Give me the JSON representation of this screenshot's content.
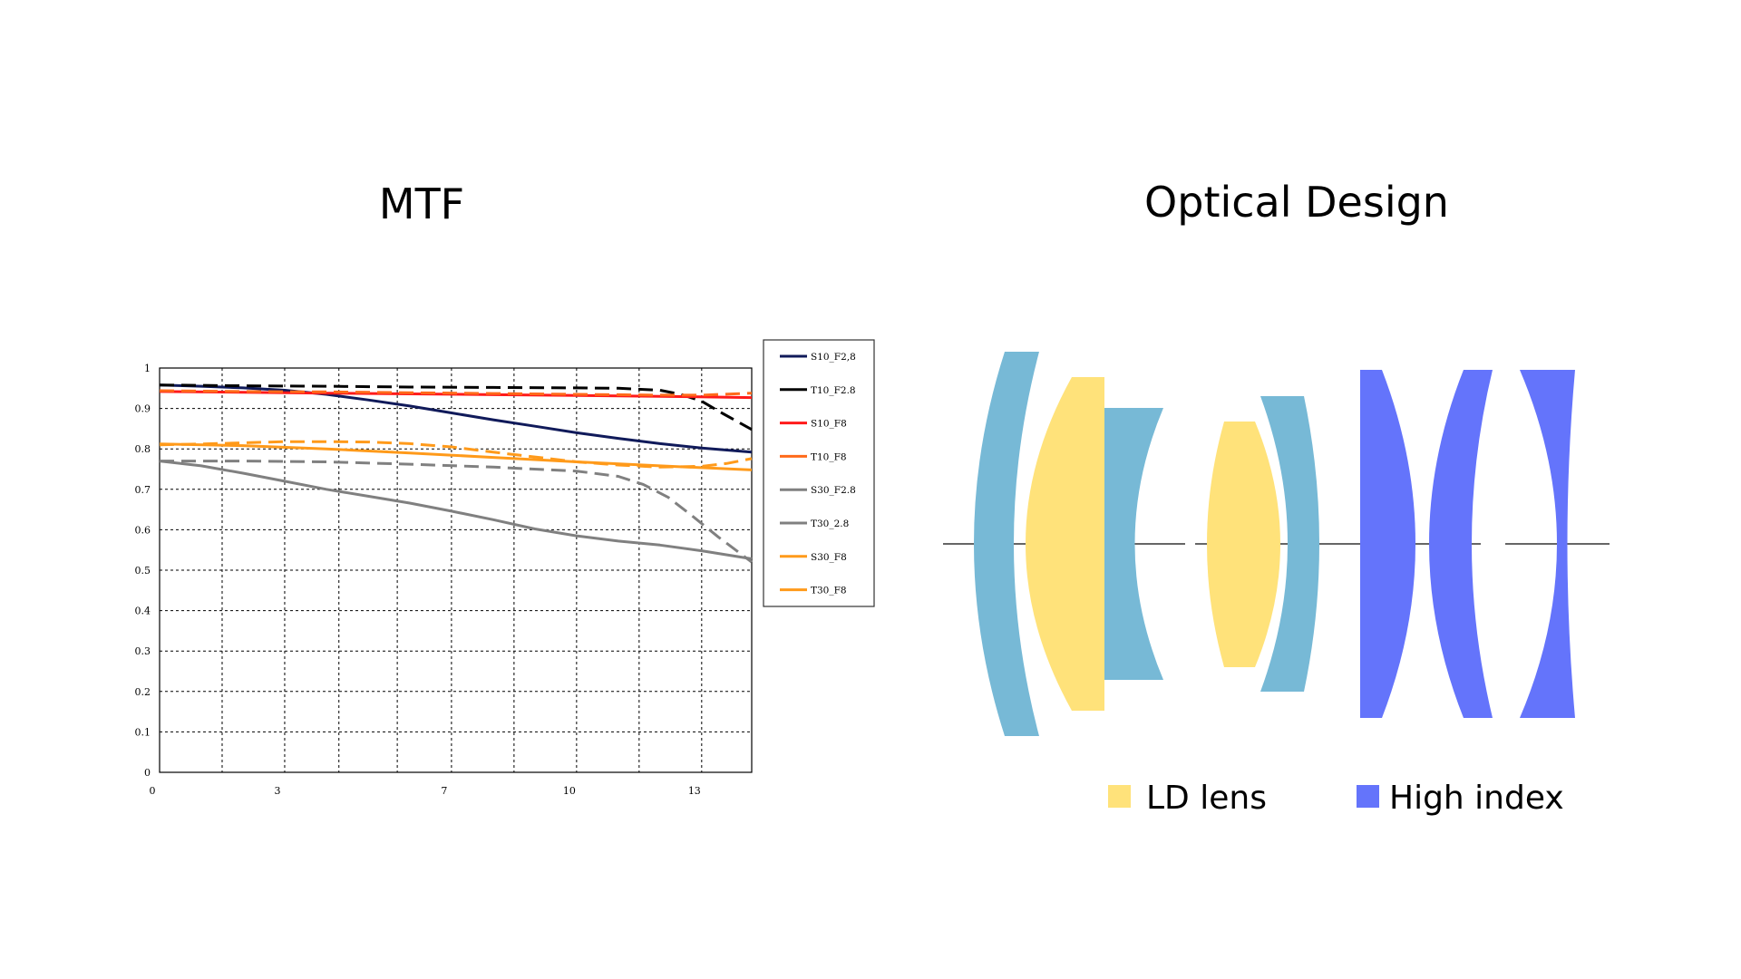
{
  "titles": {
    "left": "MTF",
    "right": "Optical Design"
  },
  "colors": {
    "navy": "#101a5a",
    "black": "#000000",
    "red": "#ff1a1a",
    "orange_red": "#ff6a1a",
    "gray": "#808080",
    "orange": "#ff9a1a",
    "lens_blue": "#77b9d6",
    "lens_yellow": "#ffe27a",
    "lens_violet": "#6474fb"
  },
  "chart_data": {
    "type": "line",
    "title": "MTF",
    "xlabel": "",
    "ylabel": "",
    "xlim": [
      0,
      14.2
    ],
    "ylim": [
      0,
      1
    ],
    "x_ticks": [
      0,
      3,
      7,
      10,
      13
    ],
    "x_tick_labels": [
      "0",
      "3",
      "7",
      "10",
      "13"
    ],
    "y_ticks": [
      0,
      0.1,
      0.2,
      0.3,
      0.4,
      0.5,
      0.6,
      0.7,
      0.8,
      0.9,
      1
    ],
    "y_tick_labels": [
      "0",
      "0.1",
      "0.2",
      "0.3",
      "0.4",
      "0.5",
      "0.6",
      "0.7",
      "0.8",
      "0.9",
      "1"
    ],
    "grid": true,
    "legend_position": "right",
    "series": [
      {
        "name": "S10_F2.8",
        "color": "#101a5a",
        "dash": "solid",
        "x": [
          0,
          1,
          2,
          3,
          4,
          5,
          6,
          7,
          8,
          9,
          10,
          11,
          12,
          13,
          14.2
        ],
        "y": [
          0.958,
          0.955,
          0.951,
          0.945,
          0.935,
          0.921,
          0.906,
          0.889,
          0.872,
          0.856,
          0.84,
          0.826,
          0.813,
          0.802,
          0.792
        ]
      },
      {
        "name": "T10_F2.8",
        "color": "#000000",
        "dash": "dashed",
        "x": [
          0,
          2,
          4,
          6,
          8,
          10,
          11,
          12,
          12.5,
          13,
          13.5,
          14.2
        ],
        "y": [
          0.958,
          0.956,
          0.955,
          0.953,
          0.952,
          0.951,
          0.95,
          0.945,
          0.935,
          0.918,
          0.888,
          0.848
        ]
      },
      {
        "name": "S10_F8",
        "color": "#ff1a1a",
        "dash": "solid",
        "x": [
          0,
          2,
          4,
          6,
          8,
          10,
          12,
          14.2
        ],
        "y": [
          0.942,
          0.94,
          0.938,
          0.936,
          0.934,
          0.932,
          0.93,
          0.927
        ]
      },
      {
        "name": "T10_F8",
        "color": "#ff6a1a",
        "dash": "dashed",
        "x": [
          0,
          2,
          4,
          6,
          8,
          10,
          12,
          13,
          14.2
        ],
        "y": [
          0.944,
          0.942,
          0.941,
          0.939,
          0.937,
          0.935,
          0.933,
          0.933,
          0.938
        ]
      },
      {
        "name": "S30_F2.8",
        "color": "#808080",
        "dash": "solid",
        "x": [
          0,
          1,
          2,
          3,
          4,
          5,
          6,
          7,
          8,
          9,
          10,
          11,
          12,
          13,
          14.2
        ],
        "y": [
          0.77,
          0.758,
          0.74,
          0.72,
          0.7,
          0.683,
          0.666,
          0.646,
          0.625,
          0.602,
          0.585,
          0.572,
          0.562,
          0.548,
          0.528
        ]
      },
      {
        "name": "T30_2.8",
        "color": "#808080",
        "dash": "dashed",
        "x": [
          0,
          2,
          4,
          6,
          8,
          10,
          11,
          11.6,
          12.2,
          12.8,
          13.4,
          14.2
        ],
        "y": [
          0.77,
          0.77,
          0.768,
          0.762,
          0.755,
          0.745,
          0.732,
          0.712,
          0.68,
          0.632,
          0.582,
          0.52
        ]
      },
      {
        "name": "S30_F8",
        "color": "#ff9a1a",
        "dash": "solid",
        "x": [
          0,
          2,
          4,
          6,
          8,
          10,
          12,
          14.2
        ],
        "y": [
          0.812,
          0.808,
          0.8,
          0.79,
          0.779,
          0.768,
          0.758,
          0.748
        ]
      },
      {
        "name": "T30_F8",
        "color": "#ff9a1a",
        "dash": "dashed",
        "x": [
          0,
          1,
          2,
          3,
          4,
          5,
          6,
          7,
          8,
          9,
          10,
          11,
          12,
          13,
          13.6,
          14.2
        ],
        "y": [
          0.81,
          0.812,
          0.815,
          0.818,
          0.818,
          0.817,
          0.813,
          0.805,
          0.792,
          0.78,
          0.768,
          0.76,
          0.755,
          0.757,
          0.764,
          0.776
        ]
      }
    ]
  },
  "legend_labels": [
    "S10_F2,8",
    "T10_F2.8",
    "S10_F8",
    "T10_F8",
    "S30_F2.8",
    "T30_2.8",
    "S30_F8",
    "T30_F8"
  ],
  "lens_key": [
    {
      "label": "LD lens",
      "color": "#ffe27a"
    },
    {
      "label": "High index",
      "color": "#6474fb"
    }
  ]
}
